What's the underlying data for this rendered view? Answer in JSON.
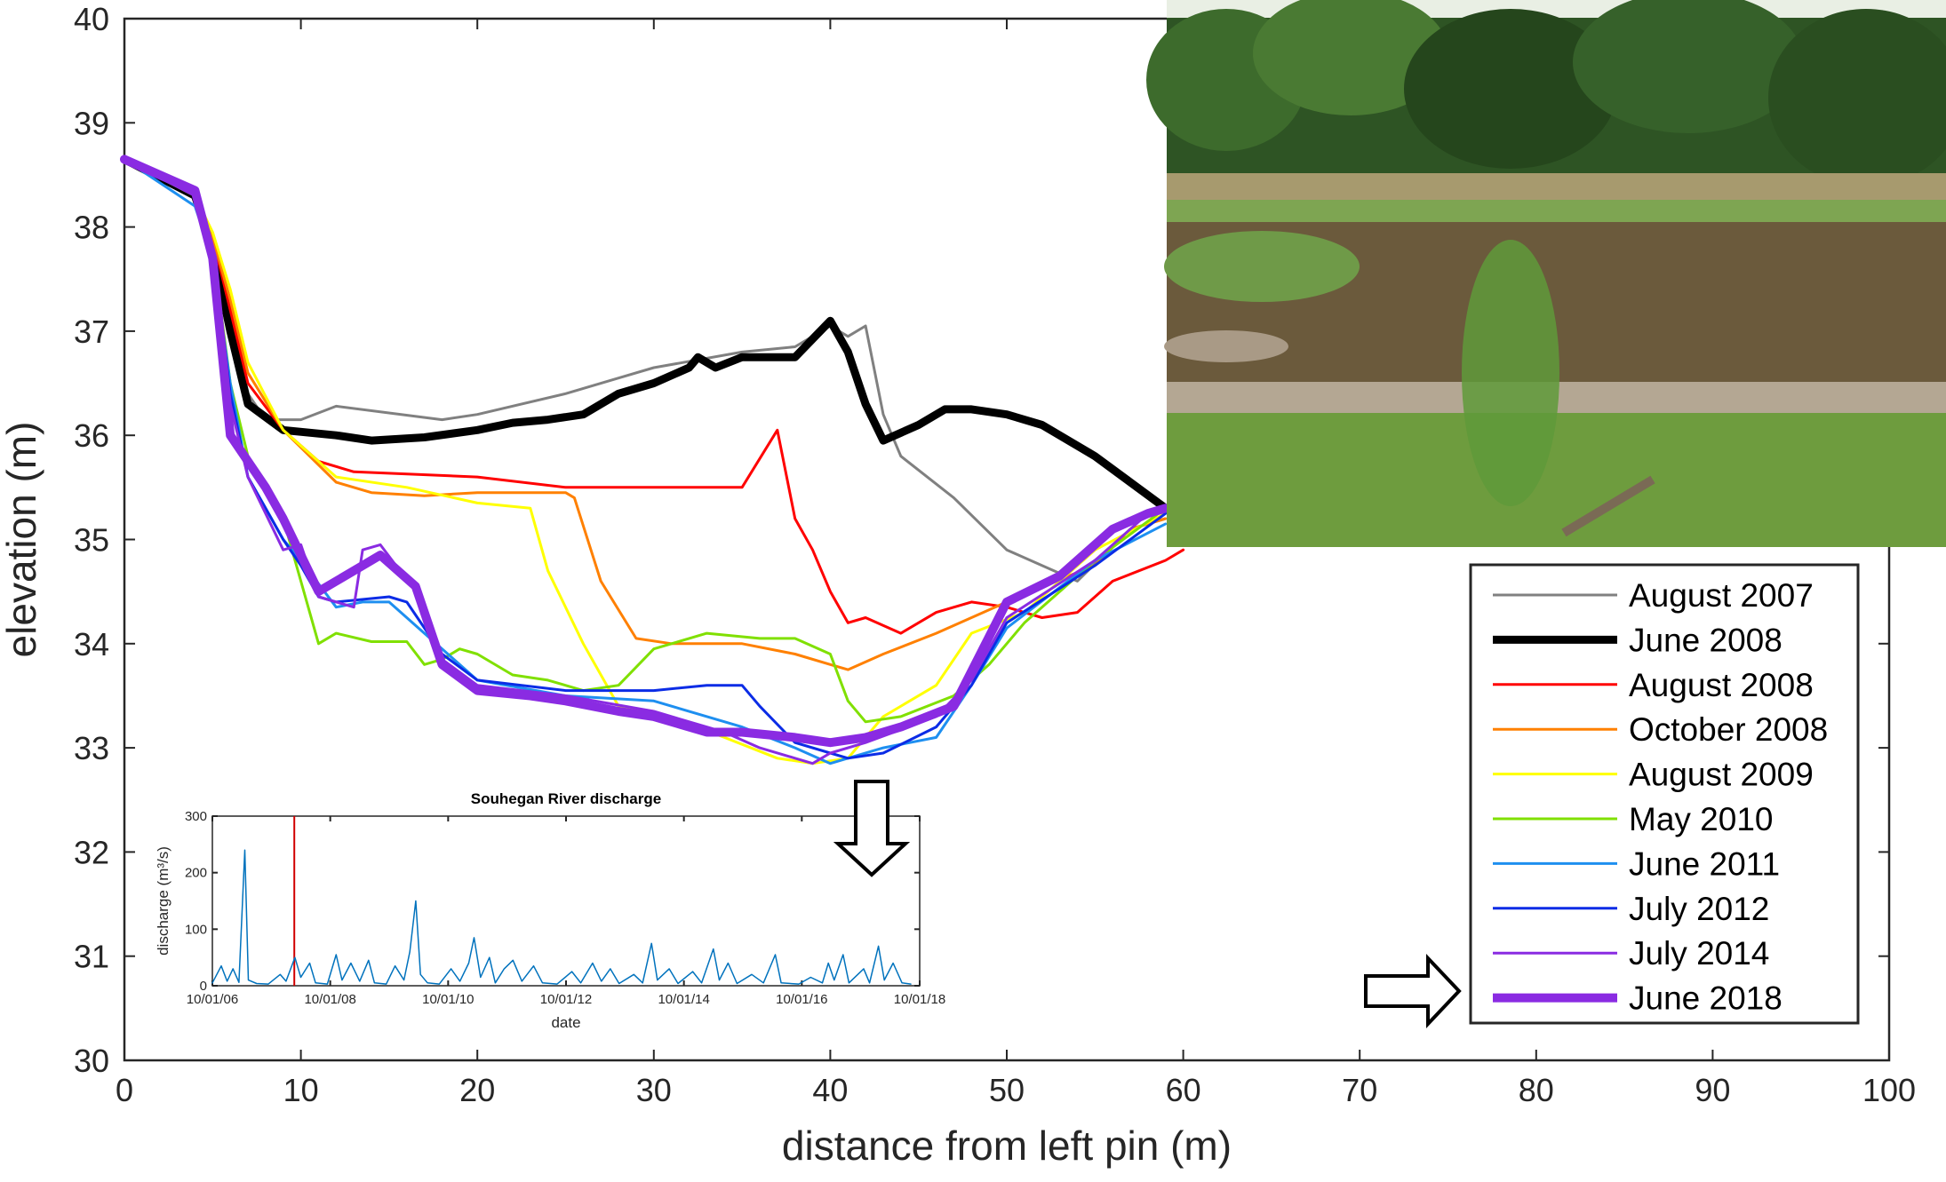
{
  "chart_data": [
    {
      "type": "line",
      "x_label": "distance from left pin (m)",
      "y_label": "elevation (m)",
      "xlim": [
        0,
        100
      ],
      "ylim": [
        30,
        40
      ],
      "xticks": [
        0,
        10,
        20,
        30,
        40,
        50,
        60,
        70,
        80,
        90,
        100
      ],
      "yticks": [
        30,
        31,
        32,
        33,
        34,
        35,
        36,
        37,
        38,
        39,
        40
      ],
      "legend": "right",
      "series": [
        {
          "name": "August 2007",
          "color": "#808080",
          "line_width": 3,
          "x": [
            0,
            4,
            5,
            6,
            7,
            8,
            10,
            12,
            18,
            20,
            25,
            28,
            30,
            35,
            38,
            40,
            41,
            42,
            43,
            44,
            47,
            50,
            54,
            57,
            59
          ],
          "values": [
            38.65,
            38.3,
            37.8,
            37,
            36.4,
            36.15,
            36.15,
            36.28,
            36.15,
            36.2,
            36.4,
            36.55,
            36.65,
            36.8,
            36.85,
            37.05,
            36.95,
            37.05,
            36.2,
            35.8,
            35.4,
            34.9,
            34.6,
            35.1,
            35.2
          ]
        },
        {
          "name": "June 2008",
          "color": "#000000",
          "line_width": 9,
          "x": [
            0,
            4,
            5,
            6,
            7,
            9,
            12,
            14,
            17,
            20,
            22,
            24,
            26,
            28,
            30,
            32,
            32.5,
            33.5,
            35,
            38,
            40,
            41,
            42,
            43,
            45,
            46.5,
            48,
            50,
            52,
            55,
            57,
            59
          ],
          "values": [
            38.65,
            38.3,
            37.8,
            37,
            36.3,
            36.05,
            36,
            35.95,
            35.98,
            36.05,
            36.12,
            36.15,
            36.2,
            36.4,
            36.5,
            36.65,
            36.75,
            36.65,
            36.75,
            36.75,
            37.1,
            36.8,
            36.3,
            35.95,
            36.1,
            36.25,
            36.25,
            36.2,
            36.1,
            35.8,
            35.55,
            35.3
          ]
        },
        {
          "name": "August 2008",
          "color": "#ff0000",
          "line_width": 3,
          "x": [
            0,
            4,
            5,
            6,
            7,
            9,
            11,
            13,
            20,
            25,
            30,
            35,
            37,
            38,
            39,
            40,
            41,
            42,
            44,
            46,
            48,
            50,
            52,
            54,
            56,
            59,
            60
          ],
          "values": [
            38.65,
            38.3,
            37.9,
            37.2,
            36.5,
            36.05,
            35.75,
            35.65,
            35.6,
            35.5,
            35.5,
            35.5,
            36.05,
            35.2,
            34.9,
            34.5,
            34.2,
            34.25,
            34.1,
            34.3,
            34.4,
            34.35,
            34.25,
            34.3,
            34.6,
            34.8,
            34.9
          ]
        },
        {
          "name": "October 2008",
          "color": "#ff8000",
          "line_width": 3,
          "x": [
            0,
            4,
            5,
            6,
            7,
            9,
            12,
            14,
            17,
            20,
            25,
            25.5,
            27,
            29,
            31,
            35,
            38,
            40,
            41,
            43,
            46,
            50,
            52,
            55,
            57,
            59
          ],
          "values": [
            38.65,
            38.3,
            37.9,
            37.3,
            36.6,
            36.05,
            35.55,
            35.45,
            35.42,
            35.45,
            35.45,
            35.4,
            34.6,
            34.05,
            34,
            34,
            33.9,
            33.8,
            33.75,
            33.9,
            34.1,
            34.4,
            34.55,
            34.75,
            35.1,
            35.2
          ]
        },
        {
          "name": "August 2009",
          "color": "#ffff00",
          "line_width": 3,
          "x": [
            0,
            4,
            5,
            6,
            7,
            9,
            12,
            16,
            20,
            23,
            24,
            26,
            28,
            30,
            34,
            37,
            39,
            41,
            43,
            46,
            48,
            51,
            55,
            59
          ],
          "values": [
            38.65,
            38.3,
            37.95,
            37.4,
            36.7,
            36.05,
            35.6,
            35.5,
            35.35,
            35.3,
            34.7,
            34,
            33.4,
            33.35,
            33.1,
            32.9,
            32.85,
            32.9,
            33.3,
            33.6,
            34.1,
            34.3,
            34.9,
            35.25
          ]
        },
        {
          "name": "May 2010",
          "color": "#80e000",
          "line_width": 3,
          "x": [
            0,
            4,
            5,
            6,
            7,
            9,
            10,
            11,
            12,
            14,
            16,
            17,
            18,
            19,
            20,
            22,
            24,
            26,
            28,
            30,
            33,
            36,
            38,
            40,
            41,
            42,
            44,
            47,
            49,
            51,
            55,
            59
          ],
          "values": [
            38.65,
            38.3,
            37.8,
            36.5,
            35.8,
            35.2,
            34.6,
            34,
            34.1,
            34.02,
            34.02,
            33.8,
            33.85,
            33.95,
            33.9,
            33.7,
            33.65,
            33.55,
            33.6,
            33.95,
            34.1,
            34.05,
            34.05,
            33.9,
            33.45,
            33.25,
            33.3,
            33.5,
            33.8,
            34.2,
            34.8,
            35.3
          ]
        },
        {
          "name": "June 2011",
          "color": "#1e8ff0",
          "line_width": 3,
          "x": [
            0,
            4,
            5,
            6,
            7,
            9,
            10,
            12,
            13.5,
            15,
            17,
            20,
            25,
            30,
            35,
            38,
            40,
            43,
            46,
            48,
            50,
            55,
            59
          ],
          "values": [
            38.65,
            38.2,
            37.7,
            36.5,
            35.6,
            35,
            34.8,
            34.35,
            34.4,
            34.4,
            34.1,
            33.65,
            33.5,
            33.45,
            33.2,
            33,
            32.85,
            33,
            33.1,
            33.6,
            34.15,
            34.8,
            35.15
          ]
        },
        {
          "name": "July 2012",
          "color": "#0b2ce6",
          "line_width": 3,
          "x": [
            0,
            4,
            5,
            6,
            7,
            8,
            9,
            10,
            11,
            12,
            15,
            16,
            18,
            20,
            25,
            30,
            33,
            35,
            36,
            38,
            40,
            41,
            43,
            46,
            48,
            50,
            55,
            59
          ],
          "values": [
            38.65,
            38.3,
            37.8,
            36.4,
            35.6,
            35.3,
            35,
            34.75,
            34.45,
            34.4,
            34.45,
            34.4,
            33.9,
            33.65,
            33.55,
            33.55,
            33.6,
            33.6,
            33.4,
            33.05,
            32.95,
            32.9,
            32.95,
            33.2,
            33.6,
            34.2,
            34.75,
            35.25
          ]
        },
        {
          "name": "July 2014",
          "color": "#8a2be2",
          "line_width": 3,
          "x": [
            0,
            4,
            5,
            6,
            7,
            9,
            10,
            11,
            13,
            13.5,
            14.5,
            16.5,
            17,
            18,
            20,
            25,
            30,
            34,
            36,
            38,
            39,
            40,
            42,
            46,
            48,
            50,
            55,
            58,
            59
          ],
          "values": [
            38.65,
            38.3,
            37.8,
            36.3,
            35.6,
            34.9,
            34.95,
            34.45,
            34.35,
            34.9,
            34.95,
            34.5,
            34.3,
            33.85,
            33.6,
            33.5,
            33.35,
            33.15,
            33,
            32.9,
            32.85,
            32.95,
            33.05,
            33.3,
            33.65,
            34.25,
            34.8,
            35.25,
            35.3
          ]
        },
        {
          "name": "June 2018",
          "color": "#8a2be2",
          "line_width": 10,
          "x": [
            0,
            4,
            5,
            6,
            8,
            9,
            11,
            13,
            14.5,
            16.5,
            18,
            20,
            23,
            25,
            28,
            30,
            33,
            35,
            38,
            40,
            42,
            44,
            47,
            50,
            53,
            56,
            58,
            59
          ],
          "values": [
            38.65,
            38.35,
            37.7,
            36,
            35.5,
            35.2,
            34.5,
            34.7,
            34.85,
            34.55,
            33.8,
            33.55,
            33.5,
            33.45,
            33.35,
            33.3,
            33.15,
            33.15,
            33.1,
            33.05,
            33.1,
            33.2,
            33.4,
            34.4,
            34.65,
            35.1,
            35.25,
            35.3
          ]
        }
      ]
    },
    {
      "type": "line",
      "title": "Souhegan River discharge",
      "x_label": "date",
      "y_label": "discharge (m³/s)",
      "xlim": [
        2006.75,
        2018.75
      ],
      "ylim": [
        0,
        300
      ],
      "xticks": [
        {
          "value": 2006.75,
          "label": "10/01/06"
        },
        {
          "value": 2008.75,
          "label": "10/01/08"
        },
        {
          "value": 2010.75,
          "label": "10/01/10"
        },
        {
          "value": 2012.75,
          "label": "10/01/12"
        },
        {
          "value": 2014.75,
          "label": "10/01/14"
        },
        {
          "value": 2016.75,
          "label": "10/01/16"
        },
        {
          "value": 2018.75,
          "label": "10/01/18"
        }
      ],
      "yticks": [
        0,
        100,
        200,
        300
      ],
      "color": "#0072bd",
      "highlight_x": 2008.14,
      "highlight_color": "#d00000",
      "x": [
        2006.75,
        2006.9,
        2007.0,
        2007.1,
        2007.2,
        2007.3,
        2007.36,
        2007.5,
        2007.7,
        2007.9,
        2008.0,
        2008.15,
        2008.25,
        2008.4,
        2008.5,
        2008.7,
        2008.85,
        2008.95,
        2009.1,
        2009.25,
        2009.4,
        2009.5,
        2009.7,
        2009.85,
        2010.0,
        2010.1,
        2010.2,
        2010.28,
        2010.4,
        2010.6,
        2010.8,
        2010.95,
        2011.1,
        2011.19,
        2011.3,
        2011.45,
        2011.55,
        2011.7,
        2011.85,
        2012.0,
        2012.2,
        2012.35,
        2012.6,
        2012.85,
        2013.0,
        2013.2,
        2013.35,
        2013.5,
        2013.65,
        2013.9,
        2014.05,
        2014.2,
        2014.3,
        2014.5,
        2014.65,
        2014.9,
        2015.05,
        2015.25,
        2015.35,
        2015.5,
        2015.65,
        2015.9,
        2016.1,
        2016.3,
        2016.4,
        2016.7,
        2016.9,
        2017.1,
        2017.2,
        2017.3,
        2017.45,
        2017.55,
        2017.8,
        2017.9,
        2018.05,
        2018.15,
        2018.3,
        2018.45,
        2018.6
      ],
      "values": [
        5,
        35,
        8,
        30,
        6,
        240,
        10,
        4,
        3,
        20,
        8,
        50,
        15,
        40,
        5,
        3,
        55,
        10,
        40,
        8,
        45,
        5,
        3,
        35,
        10,
        60,
        150,
        20,
        5,
        3,
        30,
        8,
        40,
        85,
        15,
        50,
        5,
        30,
        45,
        8,
        35,
        5,
        3,
        25,
        5,
        40,
        8,
        30,
        4,
        20,
        5,
        75,
        10,
        30,
        4,
        25,
        5,
        65,
        10,
        40,
        4,
        20,
        5,
        55,
        5,
        3,
        15,
        5,
        40,
        10,
        55,
        5,
        30,
        5,
        70,
        10,
        40,
        5,
        3
      ]
    }
  ]
}
